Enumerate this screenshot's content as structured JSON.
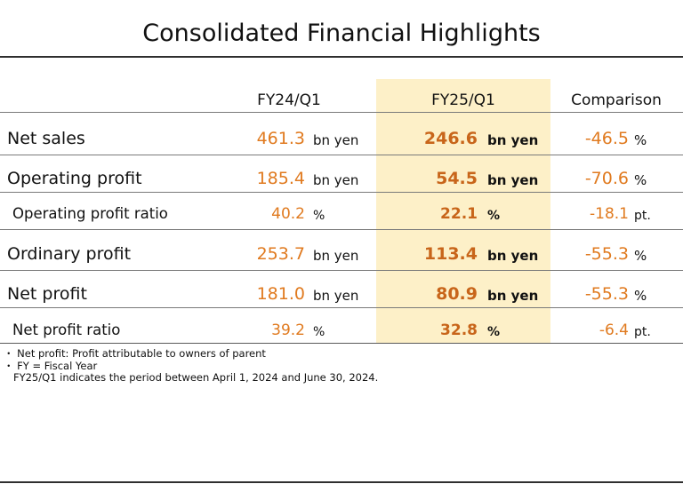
{
  "title": "Consolidated Financial Highlights",
  "headers": {
    "fy24": "FY24/Q1",
    "fy25": "FY25/Q1",
    "comparison": "Comparison"
  },
  "rows": [
    {
      "label": "Net sales",
      "fy24_value": "461.3",
      "fy24_unit": "bn yen",
      "fy25_value": "246.6",
      "fy25_unit": "bn yen",
      "comp_value": "-46.5",
      "comp_unit": "%"
    },
    {
      "label": "Operating profit",
      "fy24_value": "185.4",
      "fy24_unit": "bn yen",
      "fy25_value": "54.5",
      "fy25_unit": "bn yen",
      "comp_value": "-70.6",
      "comp_unit": "%"
    },
    {
      "label": "Operating profit ratio",
      "fy24_value": "40.2",
      "fy24_unit": "%",
      "fy25_value": "22.1",
      "fy25_unit": "%",
      "comp_value": "-18.1",
      "comp_unit": "pt."
    },
    {
      "label": "Ordinary profit",
      "fy24_value": "253.7",
      "fy24_unit": "bn yen",
      "fy25_value": "113.4",
      "fy25_unit": "bn yen",
      "comp_value": "-55.3",
      "comp_unit": "%"
    },
    {
      "label": "Net profit",
      "fy24_value": "181.0",
      "fy24_unit": "bn yen",
      "fy25_value": "80.9",
      "fy25_unit": "bn yen",
      "comp_value": "-55.3",
      "comp_unit": "%"
    },
    {
      "label": "Net profit ratio",
      "fy24_value": "39.2",
      "fy24_unit": "%",
      "fy25_value": "32.8",
      "fy25_unit": "%",
      "comp_value": "-6.4",
      "comp_unit": "pt."
    }
  ],
  "notes": [
    "・ Net profit: Profit attributable to owners of parent",
    "・ FY = Fiscal Year",
    "   FY25/Q1 indicates the period between April 1, 2024 and June 30, 2024."
  ],
  "colors": {
    "value_orange": "#e07a1f",
    "highlight_bg": "#fdf0c8"
  }
}
